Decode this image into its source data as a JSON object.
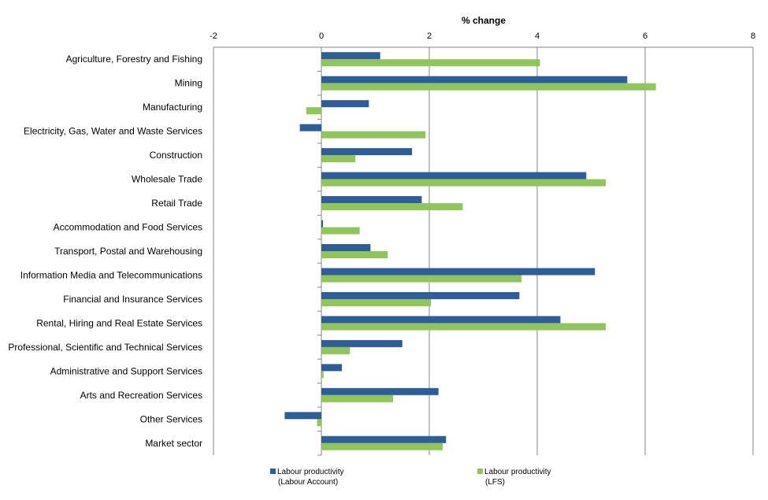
{
  "chart_data": {
    "type": "bar",
    "orientation": "horizontal",
    "title": "",
    "xlabel": "% change",
    "ylabel": "",
    "xlim": [
      -2,
      8
    ],
    "xticks": [
      "-2",
      "0",
      "2",
      "4",
      "6",
      "8"
    ],
    "grid": "vertical",
    "legend_position": "bottom",
    "categories": [
      "Agriculture, Forestry and Fishing",
      "Mining",
      "Manufacturing",
      "Electricity, Gas, Water and Waste Services",
      "Construction",
      "Wholesale Trade",
      "Retail Trade",
      "Accommodation and Food Services",
      "Transport, Postal and Warehousing",
      "Information Media and Telecommunications",
      "Financial and Insurance Services",
      "Rental, Hiring and Real Estate Services",
      "Professional, Scientific and Technical Services",
      "Administrative and Support Services",
      "Arts and Recreation Services",
      "Other Services",
      "Market sector"
    ],
    "series": [
      {
        "name": "Labour productivity (Labour Account)",
        "legend_line1": "Labour productivity",
        "legend_line2": "(Labour Account)",
        "color": "#2E5E95",
        "values": [
          1.09,
          5.67,
          0.88,
          -0.4,
          1.68,
          4.91,
          1.86,
          0.03,
          0.91,
          5.07,
          3.67,
          4.43,
          1.5,
          0.38,
          2.17,
          -0.68,
          2.31
        ]
      },
      {
        "name": "Labour productivity (LFS)",
        "legend_line1": "Labour productivity",
        "legend_line2": "(LFS)",
        "color": "#92C45E",
        "values": [
          4.05,
          6.2,
          -0.28,
          1.93,
          0.63,
          5.27,
          2.62,
          0.71,
          1.23,
          3.71,
          2.03,
          5.27,
          0.53,
          0.04,
          1.33,
          -0.08,
          2.25
        ]
      }
    ]
  }
}
